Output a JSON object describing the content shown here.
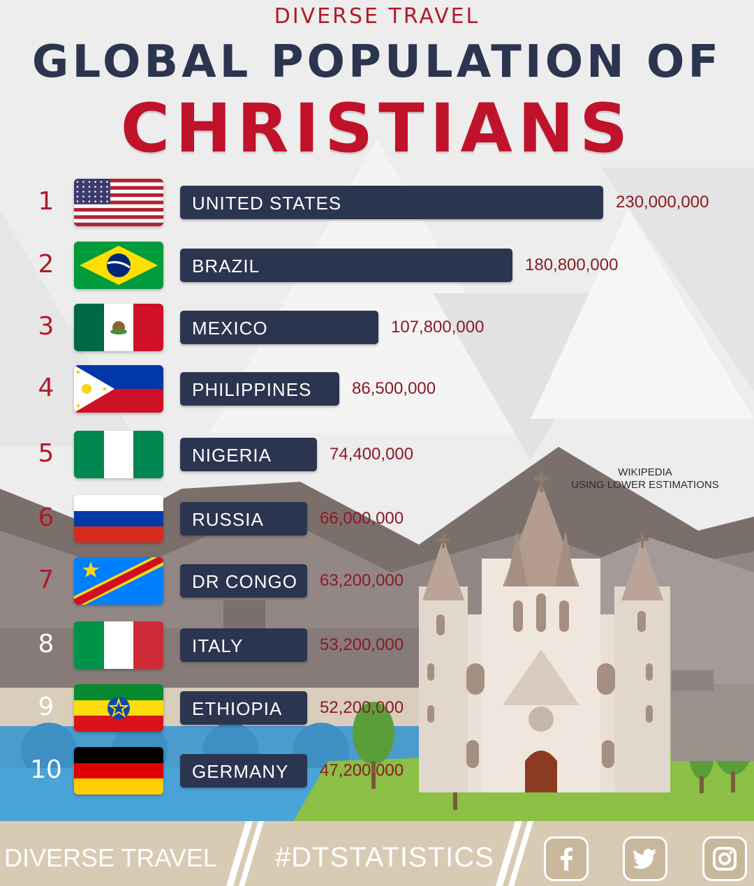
{
  "brand_top": "DIVERSE TRAVEL",
  "title_line1": "GLOBAL POPULATION OF",
  "title_line2": "CHRISTIANS",
  "note": {
    "line1": "WIKIPEDIA",
    "line2": "USING LOWER ESTIMATIONS"
  },
  "footer": {
    "brand": "DIVERSE TRAVEL",
    "hashtag": "#DTSTATISTICS",
    "social_icons": [
      "facebook-icon",
      "twitter-icon",
      "instagram-icon"
    ]
  },
  "colors": {
    "bar": "#2b3550",
    "title_red": "#c0122a",
    "title_navy": "#2b3550",
    "value_red": "#8b1a24"
  },
  "chart_data": {
    "type": "bar",
    "orientation": "horizontal",
    "title": "GLOBAL POPULATION OF CHRISTIANS",
    "ranks": [
      "1",
      "2",
      "3",
      "4",
      "5",
      "6",
      "7",
      "8",
      "9",
      "10"
    ],
    "categories": [
      "UNITED STATES",
      "BRAZIL",
      "MEXICO",
      "PHILIPPINES",
      "NIGERIA",
      "RUSSIA",
      "DR CONGO",
      "ITALY",
      "ETHIOPIA",
      "GERMANY"
    ],
    "values": [
      230000000,
      180800000,
      107800000,
      86500000,
      74400000,
      66000000,
      63200000,
      53200000,
      52200000,
      47200000
    ],
    "value_labels": [
      "230,000,000",
      "180,800,000",
      "107,800,000",
      "86,500,000",
      "74,400,000",
      "66,000,000",
      "63,200,000",
      "53,200,000",
      "52,200,000",
      "47,200,000"
    ],
    "flags": [
      "usa-flag-icon",
      "brazil-flag-icon",
      "mexico-flag-icon",
      "philippines-flag-icon",
      "nigeria-flag-icon",
      "russia-flag-icon",
      "dr-congo-flag-icon",
      "italy-flag-icon",
      "ethiopia-flag-icon",
      "germany-flag-icon"
    ],
    "grid": false,
    "legend": "none"
  }
}
